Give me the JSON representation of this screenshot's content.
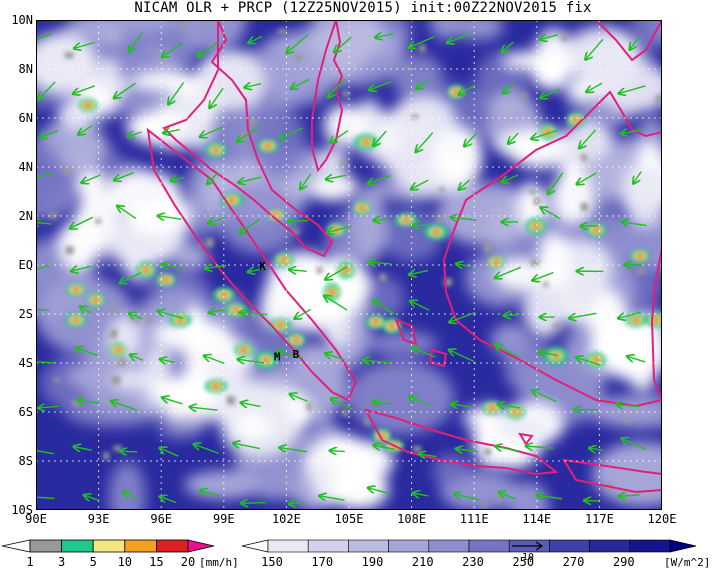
{
  "title": "NICAM OLR + PRCP (12Z25NOV2015) init:00Z22NOV2015 fix",
  "map": {
    "lat_labels": [
      "10N",
      "8N",
      "6N",
      "4N",
      "2N",
      "EQ",
      "2S",
      "4S",
      "6S",
      "8S",
      "10S"
    ],
    "lon_labels": [
      "90E",
      "93E",
      "96E",
      "99E",
      "102E",
      "105E",
      "108E",
      "111E",
      "114E",
      "117E",
      "120E"
    ],
    "lat_range": [
      -10,
      10
    ],
    "lon_range": [
      90,
      120
    ],
    "grid_lines": "dotted",
    "station_markers": [
      {
        "label": "K",
        "lon": 100.7,
        "lat": -0.2
      },
      {
        "label": "M",
        "lon": 101.4,
        "lat": -3.9
      },
      {
        "label": "B",
        "lon": 102.3,
        "lat": -3.8
      }
    ]
  },
  "legend_precip": {
    "ticks": [
      "1",
      "3",
      "5",
      "10",
      "15",
      "20"
    ],
    "unit": "[mm/h]",
    "colors": [
      "#ffffff",
      "#999999",
      "#1fc98c",
      "#f5e880",
      "#f5a020",
      "#e02020",
      "#e8108c"
    ]
  },
  "legend_olr": {
    "ticks": [
      "150",
      "170",
      "190",
      "210",
      "230",
      "250",
      "270",
      "290"
    ],
    "unit": "[W/m^2]",
    "colors": [
      "#ffffff",
      "#e9e9f5",
      "#d2d2ec",
      "#bcbce2",
      "#a5a5d8",
      "#8e8ecf",
      "#7575c4",
      "#5b5bb8",
      "#4040aa",
      "#28289c",
      "#141490",
      "#000080"
    ]
  },
  "vector_reference": {
    "label": "10"
  },
  "colors": {
    "coast": "#e0207a",
    "wind_vector": "#20c020",
    "background_cloud_free": "#2a2aa0"
  }
}
